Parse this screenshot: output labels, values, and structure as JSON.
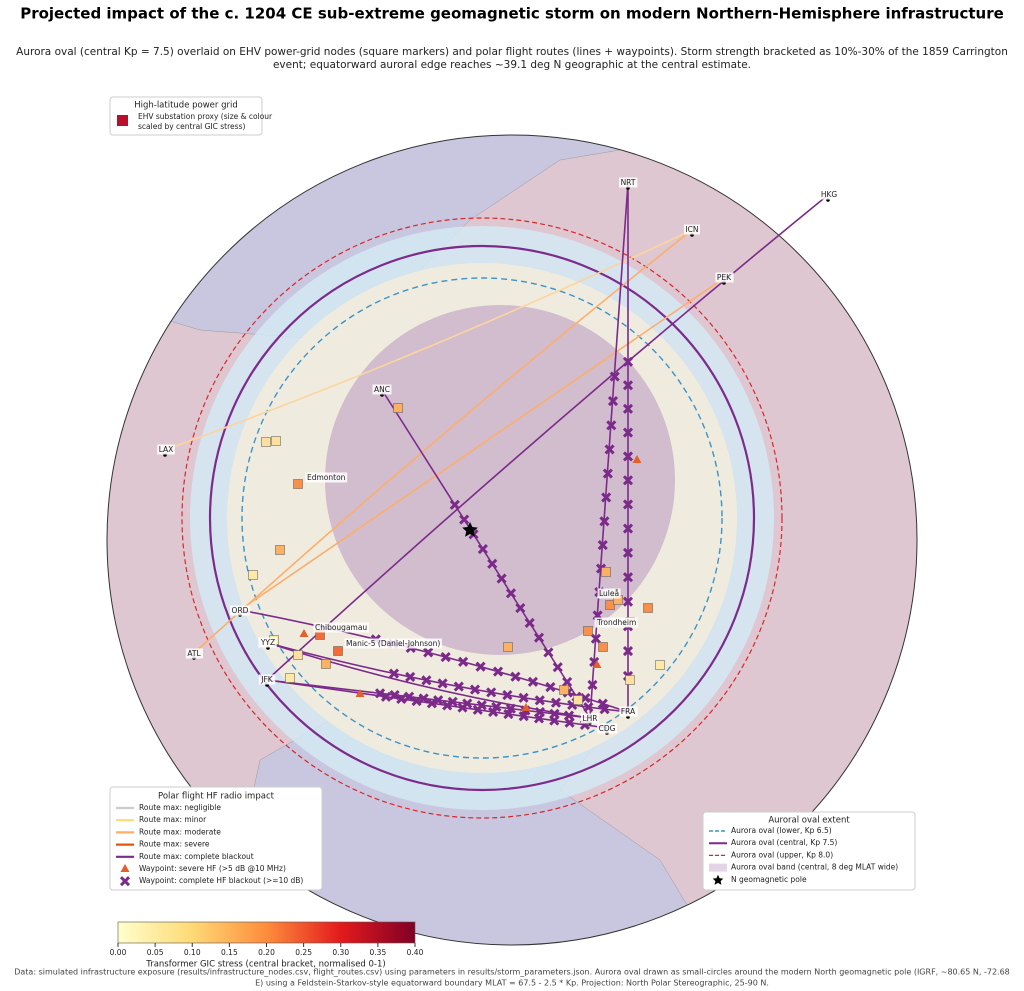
{
  "title": "Projected impact of the c. 1204 CE sub-extreme geomagnetic storm on modern Northern-Hemisphere infrastructure",
  "subtitle": [
    "Aurora oval (central Kp = 7.5) overlaid on EHV power-grid nodes (square markers) and polar flight routes (lines + waypoints). Storm strength bracketed as 10%-30% of the 1859 Carrington",
    "event; equatorward auroral edge reaches ~39.1 deg N geographic at the central estimate."
  ],
  "grid_legend": {
    "title": "High-latitude power grid",
    "entries": [
      "EHV substation proxy (size & colour",
      "scaled by central GIC stress)"
    ]
  },
  "flight_legend": {
    "title": "Polar flight HF radio impact",
    "entries": [
      "Route max: negligible",
      "Route max: minor",
      "Route max: moderate",
      "Route max: severe",
      "Route max: complete blackout",
      "Waypoint: severe HF (>5 dB @10 MHz)",
      "Waypoint: complete HF blackout (>=10 dB)"
    ]
  },
  "aurora_legend": {
    "title": "Auroral oval extent",
    "entries": [
      "Aurora oval (lower, Kp 6.5)",
      "Aurora oval (central, Kp 7.5)",
      "Aurora oval (upper, Kp 8.0)",
      "Aurora oval band (central, 8 deg MLAT wide)",
      "N geomagnetic pole"
    ]
  },
  "airports": [
    "NRT",
    "HKG",
    "ICN",
    "PEK",
    "ANC",
    "LAX",
    "ORD",
    "ATL",
    "YYZ",
    "JFK",
    "LHR",
    "FRA",
    "CDG"
  ],
  "stations": [
    "Edmonton",
    "Chibougamau",
    "Manic-5 (Daniel-Johnson)",
    "Luleå",
    "Trondheim"
  ],
  "colorbar": {
    "label": "Transformer GIC stress (central bracket, normalised 0-1)",
    "lim": [
      0,
      0.4
    ],
    "ticks": [
      {
        "value": 0,
        "label": "0.00"
      },
      {
        "value": 0.05,
        "label": "0.05"
      },
      {
        "value": 0.1,
        "label": "0.10"
      },
      {
        "value": 0.15,
        "label": "0.15"
      },
      {
        "value": 0.2,
        "label": "0.20"
      },
      {
        "value": 0.25,
        "label": "0.25"
      },
      {
        "value": 0.3,
        "label": "0.30"
      },
      {
        "value": 0.35,
        "label": "0.35"
      },
      {
        "value": 0.4,
        "label": "0.40"
      }
    ]
  },
  "footnote": [
    "Data: simulated infrastructure exposure (results/infrastructure_nodes.csv, flight_routes.csv) using parameters in results/storm_parameters.json. Aurora oval drawn as small-circles around the modern North geomagnetic pole (IGRF, ~80.65 N, -72.68",
    "E) using a Feldstein-Starkov-style equatorward boundary MLAT = 67.5 - 2.5 * Kp. Projection: North Polar Stereographic, 25-90 N."
  ]
}
